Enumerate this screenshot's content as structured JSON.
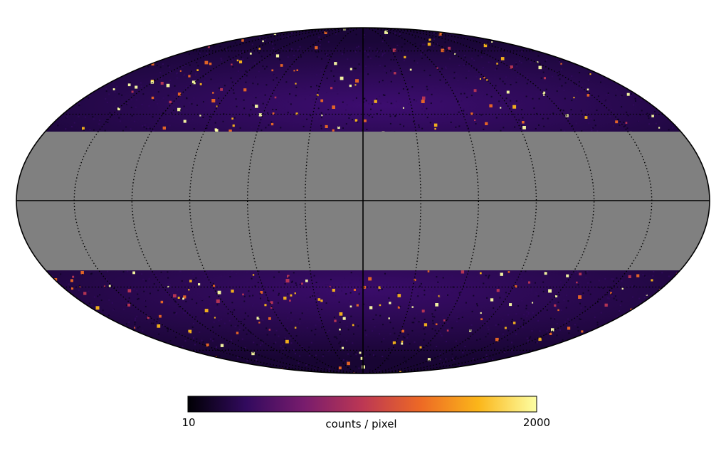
{
  "figure": {
    "type": "mollweide-sky-map",
    "masked_band_color": "#808080",
    "colormap": "inferno",
    "graticule": "dotted meridians, solid central meridian and equator"
  },
  "colorbar": {
    "min_label": "10",
    "max_label": "2000",
    "title": "counts / pixel",
    "min_value": 10,
    "max_value": 2000
  },
  "chart_data": {
    "type": "heatmap",
    "projection": "mollweide",
    "value_range": [
      10,
      2000
    ],
    "colorbar_label": "counts / pixel",
    "colormap_stops": [
      "#000004",
      "#320a5e",
      "#781c6d",
      "#bc3754",
      "#ed6925",
      "#fbb61a",
      "#fcffa4"
    ],
    "graticule_meridian_spacing_deg": 30,
    "masked_band": "galactic plane |b| < 30 deg shown in grey"
  }
}
